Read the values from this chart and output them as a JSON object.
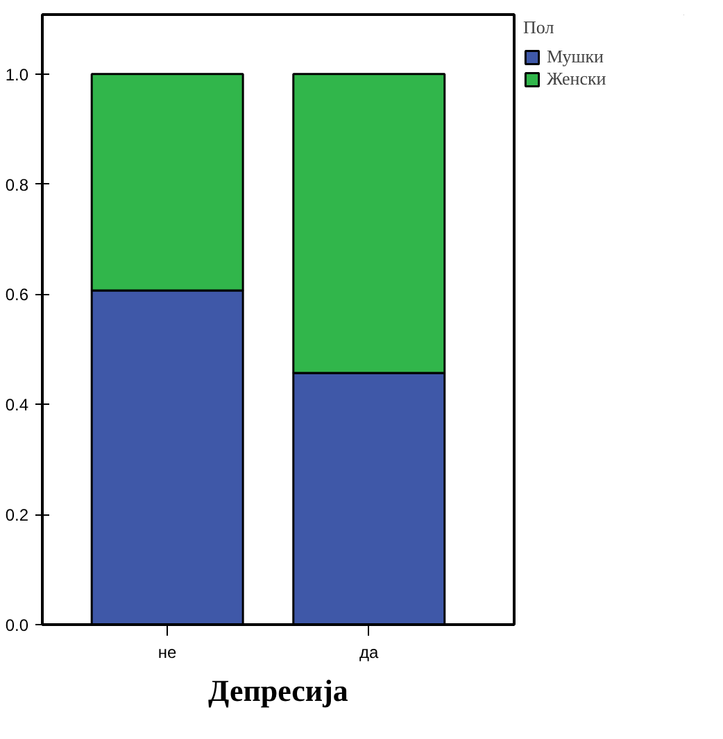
{
  "chart_data": {
    "type": "bar",
    "stacked": true,
    "categories": [
      "не",
      "да"
    ],
    "xlabel": "Депресија",
    "legend_title": "Пол",
    "legend": "top right",
    "grid": false,
    "ylim": [
      0,
      1.108
    ],
    "yticks": [
      {
        "value": 0,
        "label": "0.0"
      },
      {
        "value": 0.2,
        "label": "0.2"
      },
      {
        "value": 0.4,
        "label": "0.4"
      },
      {
        "value": 0.6,
        "label": "0.6"
      },
      {
        "value": 0.8,
        "label": "0.8"
      },
      {
        "value": 1,
        "label": "1.0"
      }
    ],
    "series": [
      {
        "name": "Мушки",
        "color": "#3f58a8",
        "values": [
          0.607,
          0.457
        ]
      },
      {
        "name": "Женски",
        "color": "#31b64b",
        "values": [
          0.393,
          0.543
        ]
      }
    ]
  }
}
